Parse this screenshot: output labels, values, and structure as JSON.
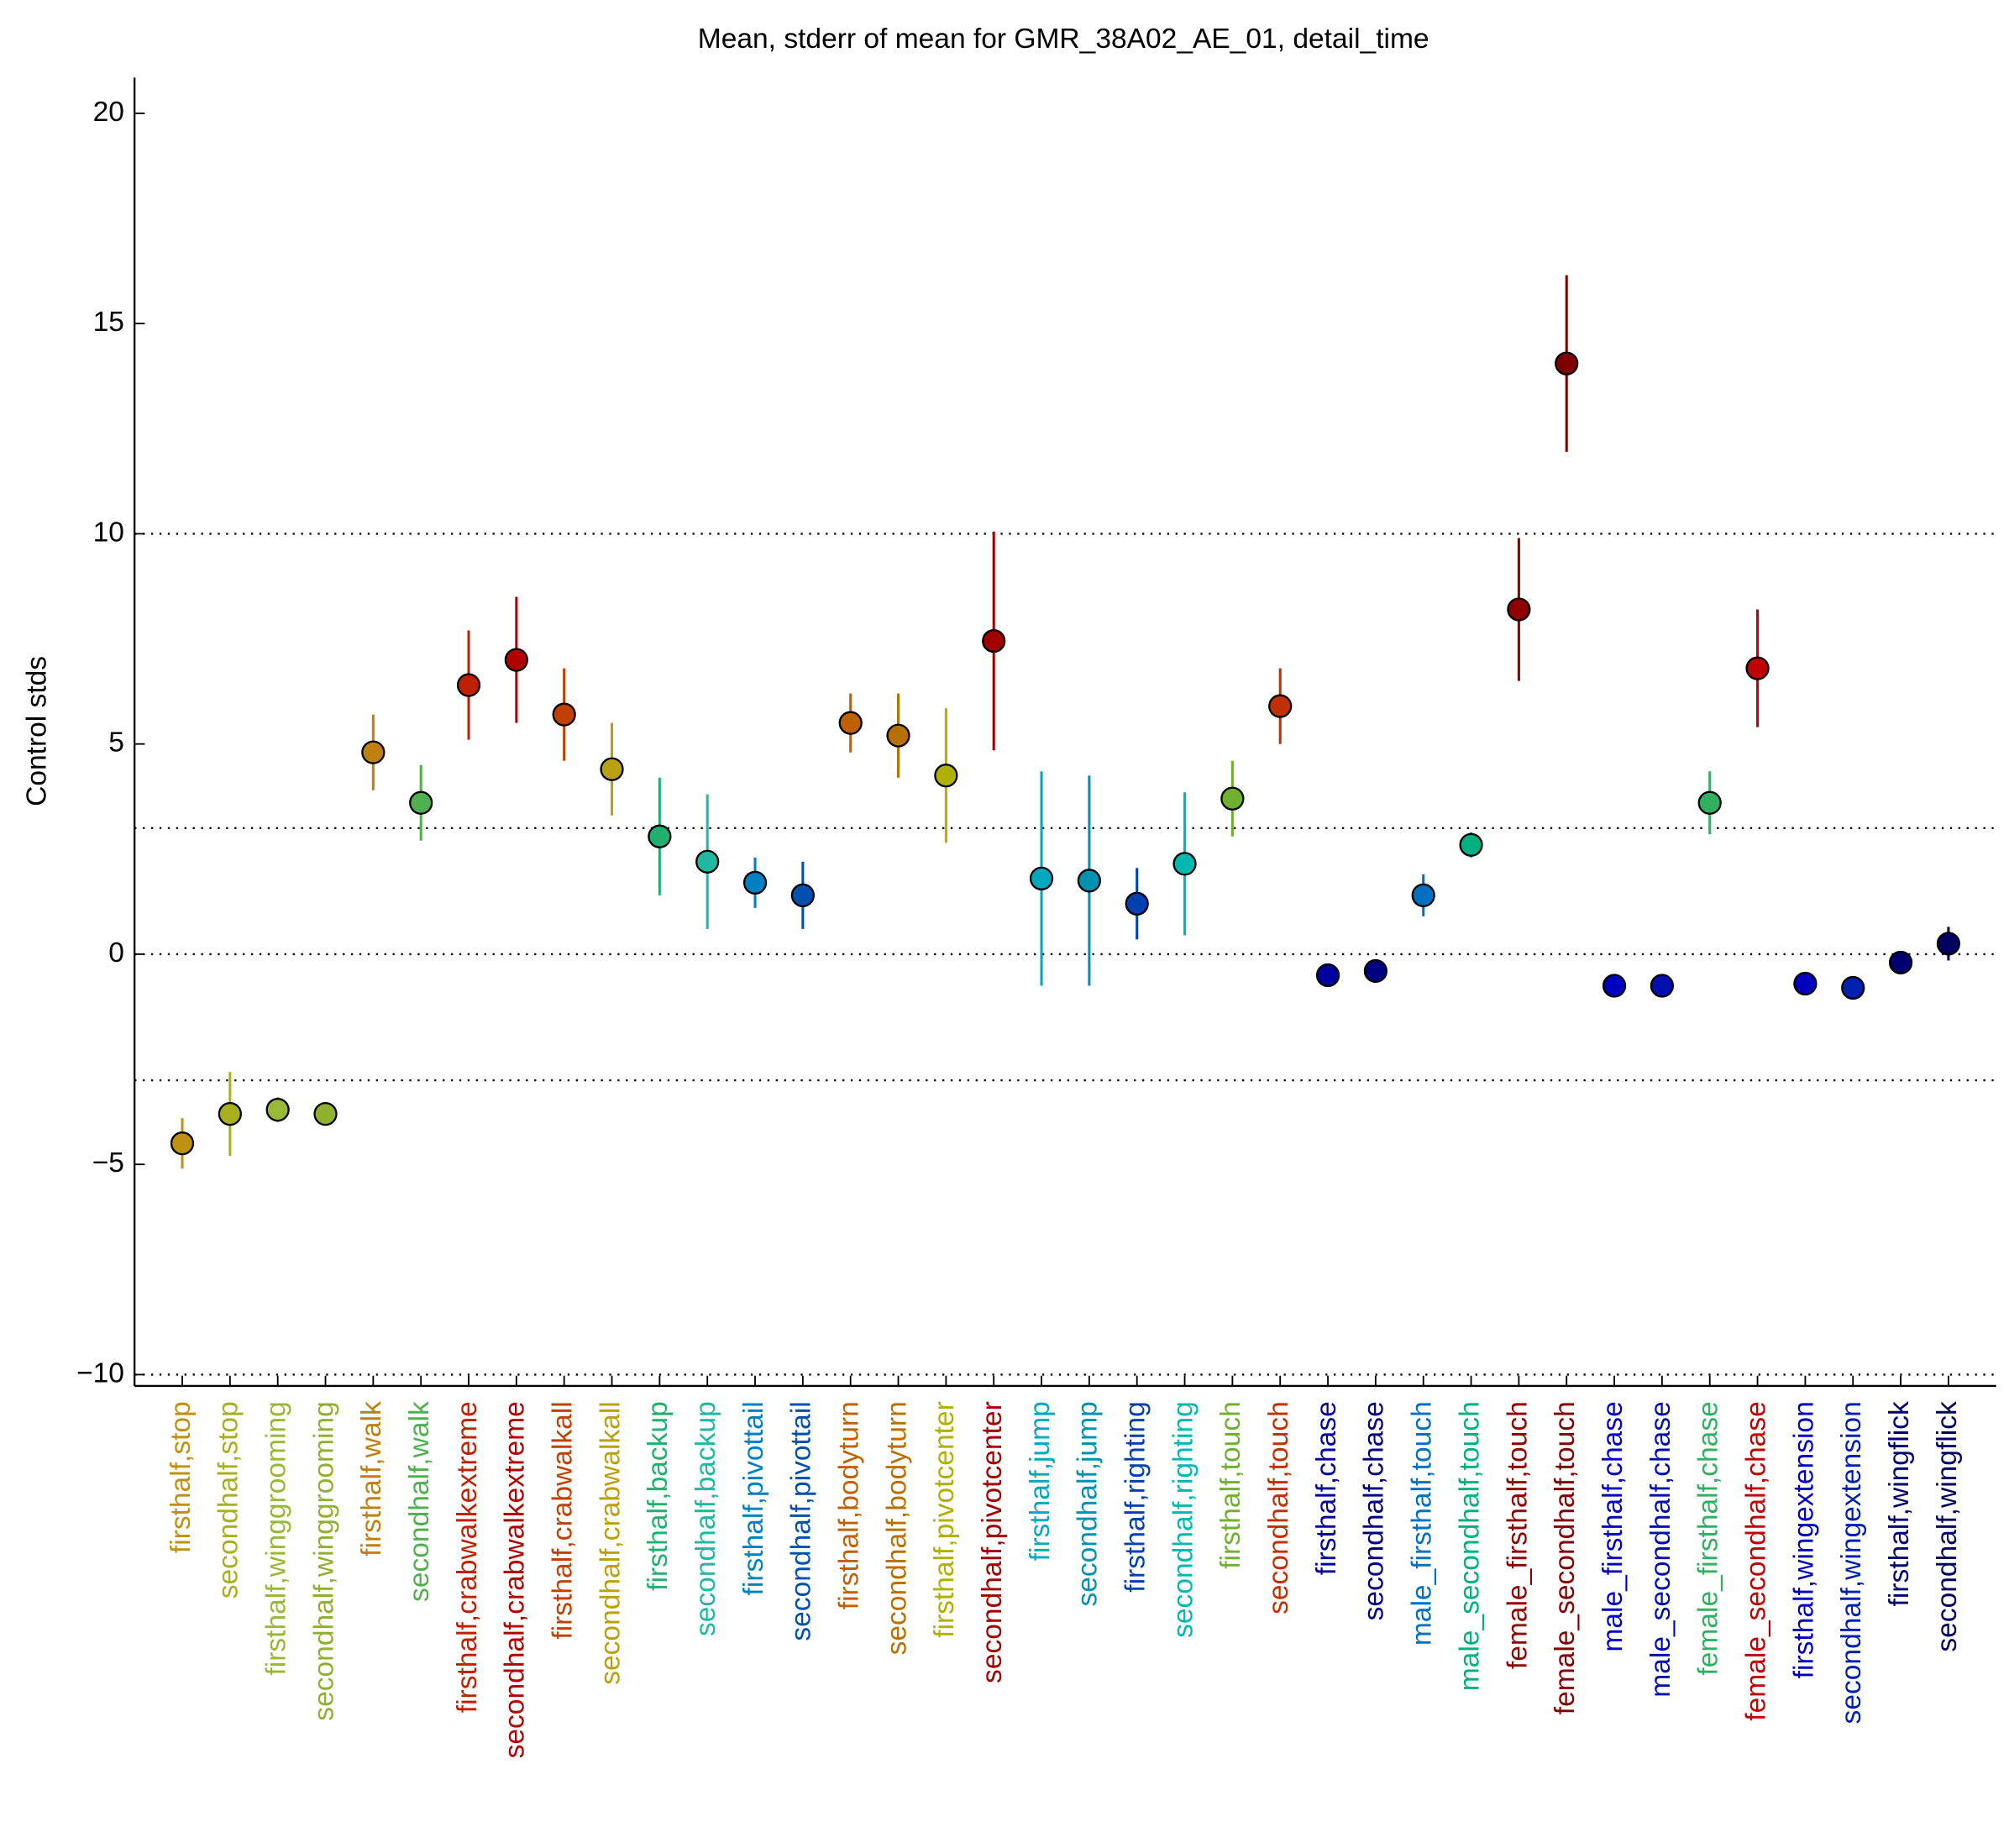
{
  "chart_data": {
    "type": "errorbar",
    "title": "Mean, stderr of mean for GMR_38A02_AE_01, detail_time",
    "ylabel": "Control stds",
    "categories": [
      "firsthalf,stop",
      "secondhalf,stop",
      "firsthalf,winggrooming",
      "secondhalf,winggrooming",
      "firsthalf,walk",
      "secondhalf,walk",
      "firsthalf,crabwalkextreme",
      "secondhalf,crabwalkextreme",
      "firsthalf,crabwalkall",
      "secondhalf,crabwalkall",
      "firsthalf,backup",
      "secondhalf,backup",
      "firsthalf,pivottail",
      "secondhalf,pivottail",
      "firsthalf,bodyturn",
      "secondhalf,bodyturn",
      "firsthalf,pivotcenter",
      "secondhalf,pivotcenter",
      "firsthalf,jump",
      "secondhalf,jump",
      "firsthalf,righting",
      "secondhalf,righting",
      "firsthalf,touch",
      "secondhalf,touch",
      "firsthalf,chase",
      "secondhalf,chase",
      "male_firsthalf,touch",
      "male_secondhalf,touch",
      "female_firsthalf,touch",
      "female_secondhalf,touch",
      "male_firsthalf,chase",
      "male_secondhalf,chase",
      "female_firsthalf,chase",
      "female_secondhalf,chase",
      "firsthalf,wingextension",
      "secondhalf,wingextension",
      "firsthalf,wingflick",
      "secondhalf,wingflick"
    ],
    "values": [
      -4.5,
      -3.8,
      -3.7,
      -3.8,
      4.8,
      3.6,
      6.4,
      7.0,
      5.7,
      4.4,
      2.8,
      2.2,
      1.7,
      1.4,
      5.5,
      5.2,
      4.25,
      7.45,
      1.8,
      1.75,
      1.2,
      2.15,
      3.7,
      5.9,
      -0.5,
      -0.4,
      1.4,
      2.6,
      8.2,
      14.05,
      -0.75,
      -0.75,
      3.6,
      6.8,
      -0.7,
      -0.8,
      -0.2,
      0.25
    ],
    "errors": [
      0.6,
      1.0,
      0.3,
      0.2,
      0.9,
      0.9,
      1.3,
      1.5,
      1.1,
      1.1,
      1.4,
      1.6,
      0.6,
      0.8,
      0.7,
      1.0,
      1.6,
      2.6,
      2.55,
      2.5,
      0.85,
      1.7,
      0.9,
      0.9,
      0.1,
      0.1,
      0.5,
      0.3,
      1.7,
      2.1,
      0.1,
      0.1,
      0.75,
      1.4,
      0.1,
      0.1,
      0.2,
      0.4
    ],
    "colors": [
      "#c09010",
      "#a8b020",
      "#98b838",
      "#90b030",
      "#c08010",
      "#50b050",
      "#c02000",
      "#b00000",
      "#c04000",
      "#b8a010",
      "#20b070",
      "#20b8a0",
      "#0080c0",
      "#0050b0",
      "#c06000",
      "#b87000",
      "#b0b000",
      "#a00000",
      "#00a8c0",
      "#0090b0",
      "#0040b0",
      "#00b8b0",
      "#70b030",
      "#c03000",
      "#0000a0",
      "#000080",
      "#0070c0",
      "#00b080",
      "#900000",
      "#800000",
      "#0000c0",
      "#0010b0",
      "#30b060",
      "#c00000",
      "#0000c0",
      "#0020b0",
      "#000070",
      "#000060"
    ],
    "xlim": [
      0,
      39
    ],
    "ylim": [
      -10.27,
      20.85
    ],
    "yticks": [
      {
        "value": -10,
        "label": "−10"
      },
      {
        "value": -5,
        "label": "−5"
      },
      0,
      5,
      10,
      15,
      20
    ],
    "grid_lines": [
      -10,
      -3,
      0,
      3,
      10
    ]
  }
}
